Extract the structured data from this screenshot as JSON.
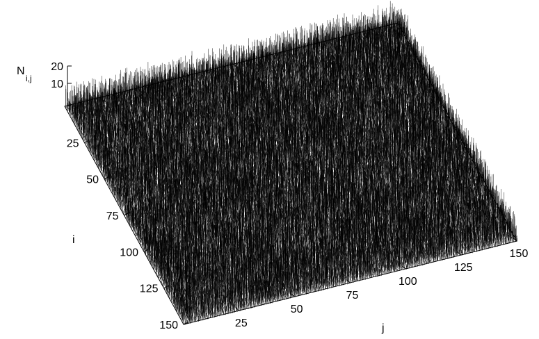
{
  "chart_data": {
    "type": "surface3d",
    "style": "impulses",
    "title": "",
    "x_axis": {
      "label": "j",
      "range": [
        0,
        150
      ],
      "ticks": [
        25,
        50,
        75,
        100,
        125,
        150
      ]
    },
    "y_axis": {
      "label": "i",
      "range": [
        0,
        150
      ],
      "ticks": [
        25,
        50,
        75,
        100,
        125,
        150
      ]
    },
    "z_axis": {
      "label": "N",
      "label_subscript": "i,j",
      "range": [
        0,
        20
      ],
      "ticks": [
        10,
        20
      ]
    },
    "grid": false,
    "legend": "none",
    "colors": {
      "lines": "#000000",
      "background": "#ffffff"
    }
  }
}
